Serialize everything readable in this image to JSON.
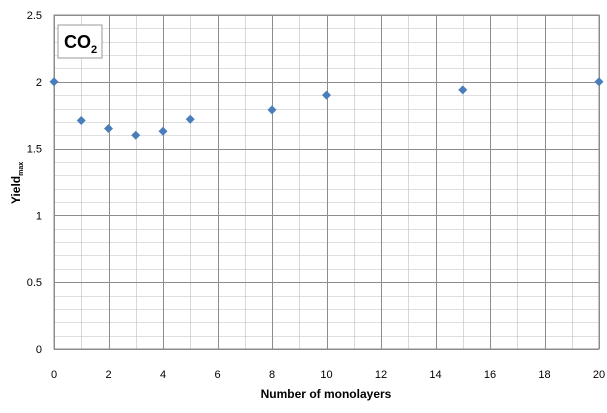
{
  "chart_data": {
    "type": "scatter",
    "annotation": {
      "base": "CO",
      "subscript": "2"
    },
    "xlabel": "Number of monolayers",
    "ylabel": {
      "base": "Yield",
      "subscript": "max"
    },
    "xlim": [
      0,
      20
    ],
    "ylim": [
      0,
      2.5
    ],
    "x_ticks": [
      "0",
      "2",
      "4",
      "6",
      "8",
      "10",
      "12",
      "14",
      "16",
      "18",
      "20"
    ],
    "y_ticks": [
      "0",
      "0.5",
      "1",
      "1.5",
      "2",
      "2.5"
    ],
    "grid": true,
    "minor_grid": {
      "x_step": 1,
      "y_step": 0.1
    },
    "marker": "diamond",
    "series": [
      {
        "color": "#4a7ebb",
        "points": [
          {
            "x": 0,
            "y": 2.0
          },
          {
            "x": 1,
            "y": 1.71
          },
          {
            "x": 2,
            "y": 1.65
          },
          {
            "x": 3,
            "y": 1.6
          },
          {
            "x": 4,
            "y": 1.63
          },
          {
            "x": 5,
            "y": 1.72
          },
          {
            "x": 8,
            "y": 1.79
          },
          {
            "x": 10,
            "y": 1.9
          },
          {
            "x": 15,
            "y": 1.94
          },
          {
            "x": 20,
            "y": 2.0
          }
        ]
      }
    ],
    "colors": {
      "major_grid": "#8c8c8c",
      "minor_grid": "#bfbfbf",
      "border": "#8c8c8c",
      "annotation_box": "#9a9a9a"
    }
  }
}
